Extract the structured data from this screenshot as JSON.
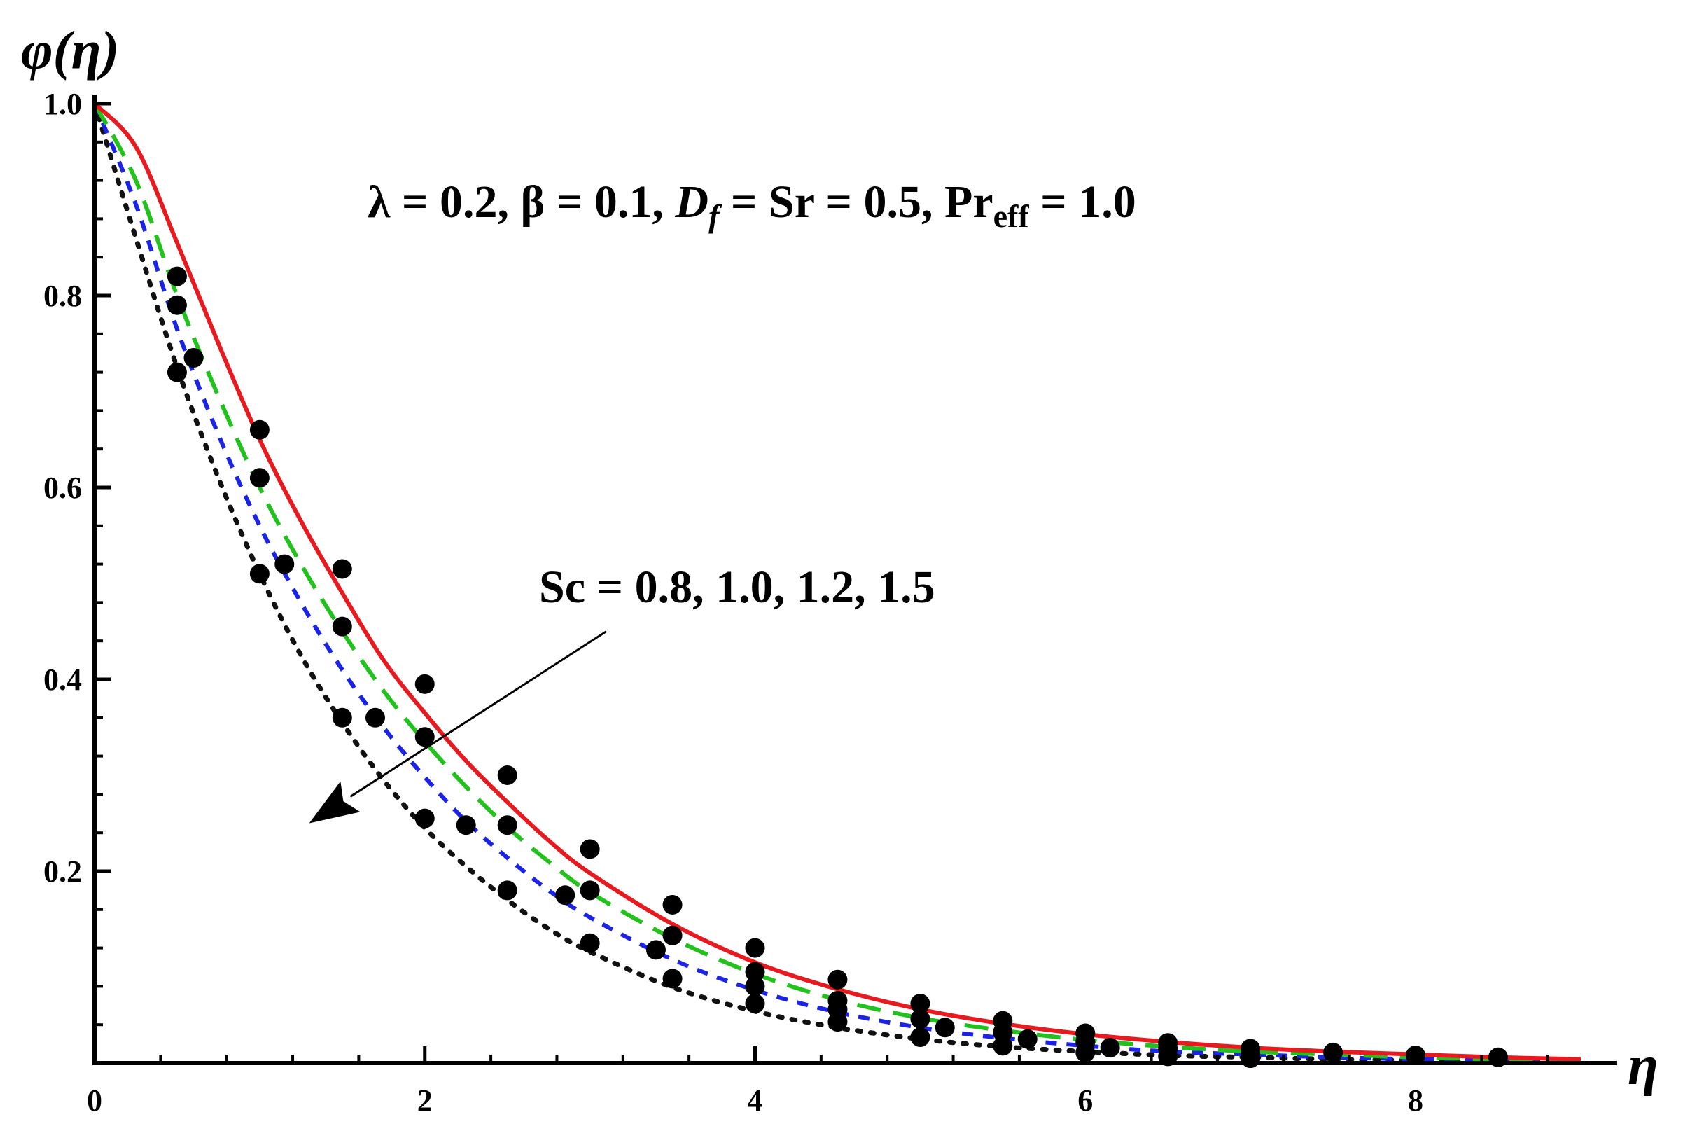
{
  "chart_data": {
    "type": "line",
    "title": "",
    "xlabel": "η",
    "ylabel": "φ(η)",
    "xlim": [
      0,
      9
    ],
    "ylim": [
      0,
      1.0
    ],
    "x_ticks": [
      0,
      2,
      4,
      6,
      8
    ],
    "y_ticks": [
      0.2,
      0.4,
      0.6,
      0.8,
      1.0
    ],
    "x_tick_labels": [
      "0",
      "2",
      "4",
      "6",
      "8"
    ],
    "y_tick_labels": [
      "0.2",
      "0.4",
      "0.6",
      "0.8",
      "1.0"
    ],
    "grid": false,
    "legend": "none",
    "annotations": {
      "params_main": "λ = 0.2, β = 0.1, ",
      "params_D": "D",
      "params_f": "f",
      "params_mid": " = Sr = 0.5, Pr",
      "params_eff": "eff",
      "params_end": " = 1.0",
      "sc_label": "Sc = 0.8, 1.0, 1.2, 1.5"
    },
    "series": [
      {
        "style": "solid",
        "color": "#e8191f",
        "x": [
          0,
          0.25,
          0.5,
          0.75,
          1.0,
          1.25,
          1.5,
          1.75,
          2.0,
          2.25,
          2.5,
          2.75,
          3.0,
          3.5,
          4.0,
          4.5,
          5.0,
          5.5,
          6.0,
          6.5,
          7.0,
          7.5,
          8.0,
          8.5,
          9.0
        ],
        "y": [
          1.0,
          0.955,
          0.855,
          0.75,
          0.65,
          0.565,
          0.49,
          0.42,
          0.365,
          0.315,
          0.272,
          0.232,
          0.198,
          0.145,
          0.105,
          0.077,
          0.056,
          0.041,
          0.03,
          0.022,
          0.016,
          0.012,
          0.009,
          0.006,
          0.004
        ]
      },
      {
        "style": "longdash",
        "color": "#22c21c",
        "x": [
          0,
          0.25,
          0.5,
          0.75,
          1.0,
          1.25,
          1.5,
          1.75,
          2.0,
          2.25,
          2.5,
          2.75,
          3.0,
          3.5,
          4.0,
          4.5,
          5.0,
          5.5,
          6.0,
          6.5,
          7.0,
          7.5,
          8.0,
          8.5,
          9.0
        ],
        "y": [
          1.0,
          0.92,
          0.8,
          0.695,
          0.6,
          0.52,
          0.45,
          0.388,
          0.335,
          0.288,
          0.246,
          0.21,
          0.178,
          0.13,
          0.093,
          0.066,
          0.047,
          0.034,
          0.024,
          0.017,
          0.012,
          0.009,
          0.006,
          0.004,
          0.003
        ]
      },
      {
        "style": "shortdash",
        "color": "#1a23e6",
        "x": [
          0,
          0.25,
          0.5,
          0.75,
          1.0,
          1.25,
          1.5,
          1.75,
          2.0,
          2.25,
          2.5,
          2.75,
          3.0,
          3.5,
          4.0,
          4.5,
          5.0,
          5.5,
          6.0,
          6.5,
          7.0,
          7.5,
          8.0,
          8.5,
          9.0
        ],
        "y": [
          1.0,
          0.895,
          0.765,
          0.655,
          0.56,
          0.48,
          0.41,
          0.35,
          0.298,
          0.252,
          0.214,
          0.18,
          0.152,
          0.108,
          0.076,
          0.053,
          0.037,
          0.026,
          0.018,
          0.012,
          0.009,
          0.006,
          0.004,
          0.003,
          0.002
        ]
      },
      {
        "style": "dotted",
        "color": "#111111",
        "x": [
          0,
          0.25,
          0.5,
          0.75,
          1.0,
          1.25,
          1.5,
          1.75,
          2.0,
          2.25,
          2.5,
          2.75,
          3.0,
          3.5,
          4.0,
          4.5,
          5.0,
          5.5,
          6.0,
          6.5,
          7.0,
          7.5,
          8.0,
          8.5,
          9.0
        ],
        "y": [
          1.0,
          0.86,
          0.725,
          0.61,
          0.51,
          0.425,
          0.355,
          0.295,
          0.245,
          0.205,
          0.17,
          0.14,
          0.116,
          0.079,
          0.054,
          0.037,
          0.025,
          0.017,
          0.012,
          0.008,
          0.006,
          0.004,
          0.003,
          0.002,
          0.001
        ]
      }
    ],
    "markers": {
      "color": "#000000",
      "points": [
        [
          0.5,
          0.82
        ],
        [
          0.5,
          0.79
        ],
        [
          0.5,
          0.72
        ],
        [
          0.6,
          0.735
        ],
        [
          1.0,
          0.66
        ],
        [
          1.0,
          0.61
        ],
        [
          1.0,
          0.51
        ],
        [
          1.15,
          0.52
        ],
        [
          1.5,
          0.515
        ],
        [
          1.5,
          0.455
        ],
        [
          1.5,
          0.36
        ],
        [
          1.7,
          0.36
        ],
        [
          2.0,
          0.395
        ],
        [
          2.0,
          0.34
        ],
        [
          2.0,
          0.255
        ],
        [
          2.25,
          0.248
        ],
        [
          2.5,
          0.3
        ],
        [
          2.5,
          0.248
        ],
        [
          2.5,
          0.18
        ],
        [
          2.85,
          0.175
        ],
        [
          3.0,
          0.223
        ],
        [
          3.0,
          0.18
        ],
        [
          3.0,
          0.125
        ],
        [
          3.5,
          0.165
        ],
        [
          3.5,
          0.133
        ],
        [
          3.5,
          0.088
        ],
        [
          3.4,
          0.118
        ],
        [
          4.0,
          0.12
        ],
        [
          4.0,
          0.095
        ],
        [
          4.0,
          0.062
        ],
        [
          4.0,
          0.08
        ],
        [
          4.5,
          0.087
        ],
        [
          4.5,
          0.065
        ],
        [
          4.5,
          0.043
        ],
        [
          4.5,
          0.056
        ],
        [
          5.0,
          0.062
        ],
        [
          5.0,
          0.046
        ],
        [
          5.0,
          0.027
        ],
        [
          5.15,
          0.037
        ],
        [
          5.5,
          0.044
        ],
        [
          5.5,
          0.032
        ],
        [
          5.5,
          0.018
        ],
        [
          5.65,
          0.025
        ],
        [
          6.0,
          0.031
        ],
        [
          6.0,
          0.022
        ],
        [
          6.0,
          0.011
        ],
        [
          6.15,
          0.016
        ],
        [
          6.5,
          0.021
        ],
        [
          6.5,
          0.015
        ],
        [
          6.5,
          0.007
        ],
        [
          7.0,
          0.015
        ],
        [
          7.0,
          0.01
        ],
        [
          7.0,
          0.005
        ],
        [
          7.5,
          0.011
        ],
        [
          8.0,
          0.008
        ],
        [
          8.5,
          0.006
        ]
      ]
    },
    "arrow": {
      "from": [
        3.1,
        0.45
      ],
      "to": [
        1.3,
        0.25
      ]
    }
  }
}
